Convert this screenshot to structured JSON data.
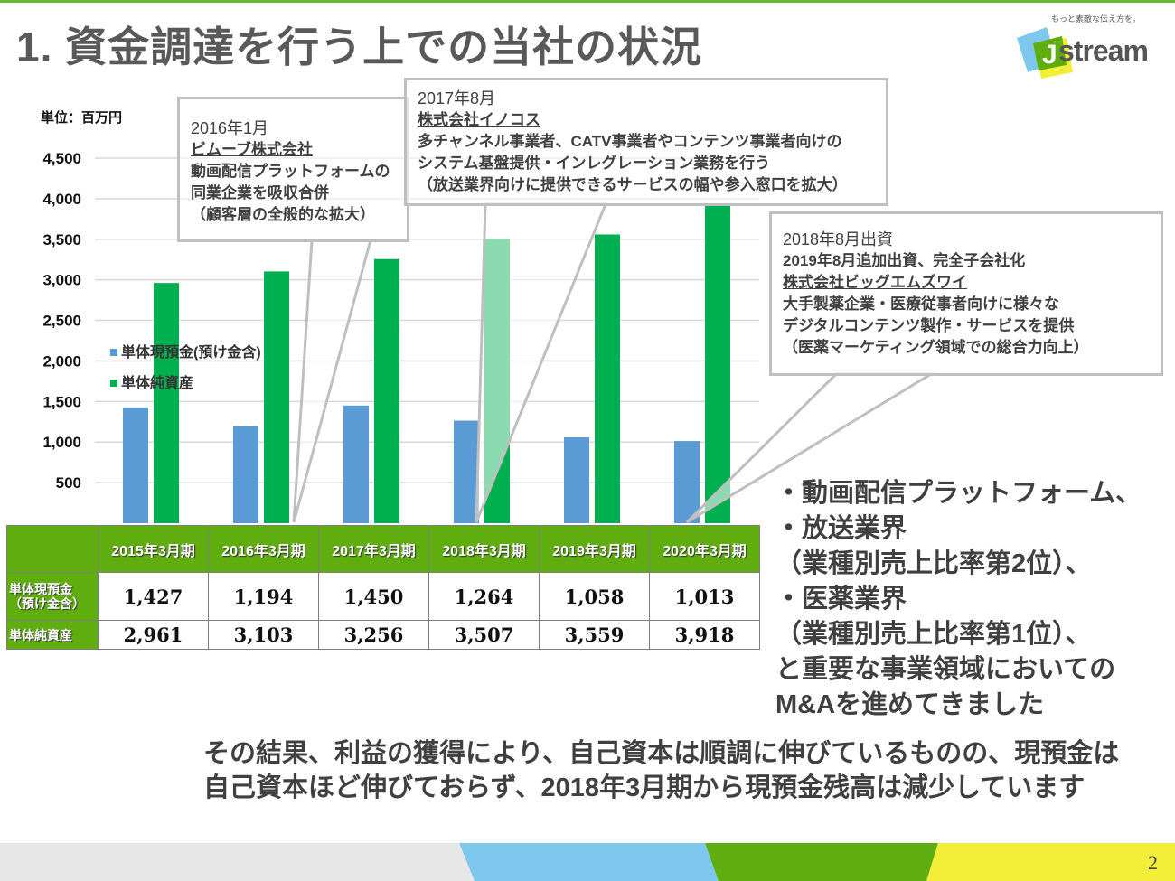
{
  "title": "1. 資金調達を行う上での当社の状況",
  "logo": {
    "tagline": "もっと素敵な伝え方を。",
    "name": "Jstream"
  },
  "unit_label": "単位：百万円",
  "chart_data": {
    "type": "bar",
    "categories": [
      "2015年3月期",
      "2016年3月期",
      "2017年3月期",
      "2018年3月期",
      "2019年3月期",
      "2020年3月期"
    ],
    "series": [
      {
        "name": "単体現預金(預け金含)",
        "values": [
          1427,
          1194,
          1450,
          1264,
          1058,
          1013
        ],
        "color": "#5b9bd5"
      },
      {
        "name": "単体純資産",
        "values": [
          2961,
          3103,
          3256,
          3507,
          3559,
          3918
        ],
        "color": "#00b050"
      }
    ],
    "ylim": [
      0,
      4500
    ],
    "yticks": [
      500,
      1000,
      1500,
      2000,
      2500,
      3000,
      3500,
      4000,
      4500
    ],
    "ytick_labels": [
      "500",
      "1,000",
      "1,500",
      "2,000",
      "2,500",
      "3,000",
      "3,500",
      "4,000",
      "4,500"
    ],
    "grid": true,
    "legend": "left-middle"
  },
  "table": {
    "rows": [
      {
        "label": [
          "単体現預金",
          "（預け金含）"
        ],
        "values": [
          "1,427",
          "1,194",
          "1,450",
          "1,264",
          "1,058",
          "1,013"
        ]
      },
      {
        "label": [
          "単体純資産"
        ],
        "values": [
          "2,961",
          "3,103",
          "3,256",
          "3,507",
          "3,559",
          "3,918"
        ]
      }
    ]
  },
  "callouts": [
    {
      "date": "2016年1月",
      "company": "ビムーブ株式会社",
      "lines": [
        "動画配信プラットフォームの",
        "同業企業を吸収合併",
        "（顧客層の全般的な拡大）"
      ]
    },
    {
      "date": "2017年8月",
      "company": "株式会社イノコス",
      "lines": [
        "多チャンネル事業者、CATV事業者やコンテンツ事業者向けの",
        "システム基盤提供・インレグレーション業務を行う",
        "（放送業界向けに提供できるサービスの幅や参入窓口を拡大）"
      ]
    },
    {
      "date": "2018年8月出資",
      "date2": "2019年8月追加出資、完全子会社化",
      "company": "株式会社ビッグエムズワイ",
      "lines": [
        "大手製薬企業・医療従事者向けに様々な",
        "デジタルコンテンツ製作・サービスを提供",
        "（医薬マーケティング領域での総合力向上）"
      ]
    }
  ],
  "bullets": [
    "・動画配信プラットフォーム、",
    "・放送業界",
    "（業種別売上比率第2位）、",
    "・医薬業界",
    "（業種別売上比率第1位）、",
    "と重要な事業領域においての",
    "M&Aを進めてきました"
  ],
  "summary": [
    "その結果、利益の獲得により、自己資本は順調に伸びているものの、現預金は",
    "自己資本ほど伸びておらず、2018年3月期から現預金残高は減少しています"
  ],
  "page_number": "2"
}
